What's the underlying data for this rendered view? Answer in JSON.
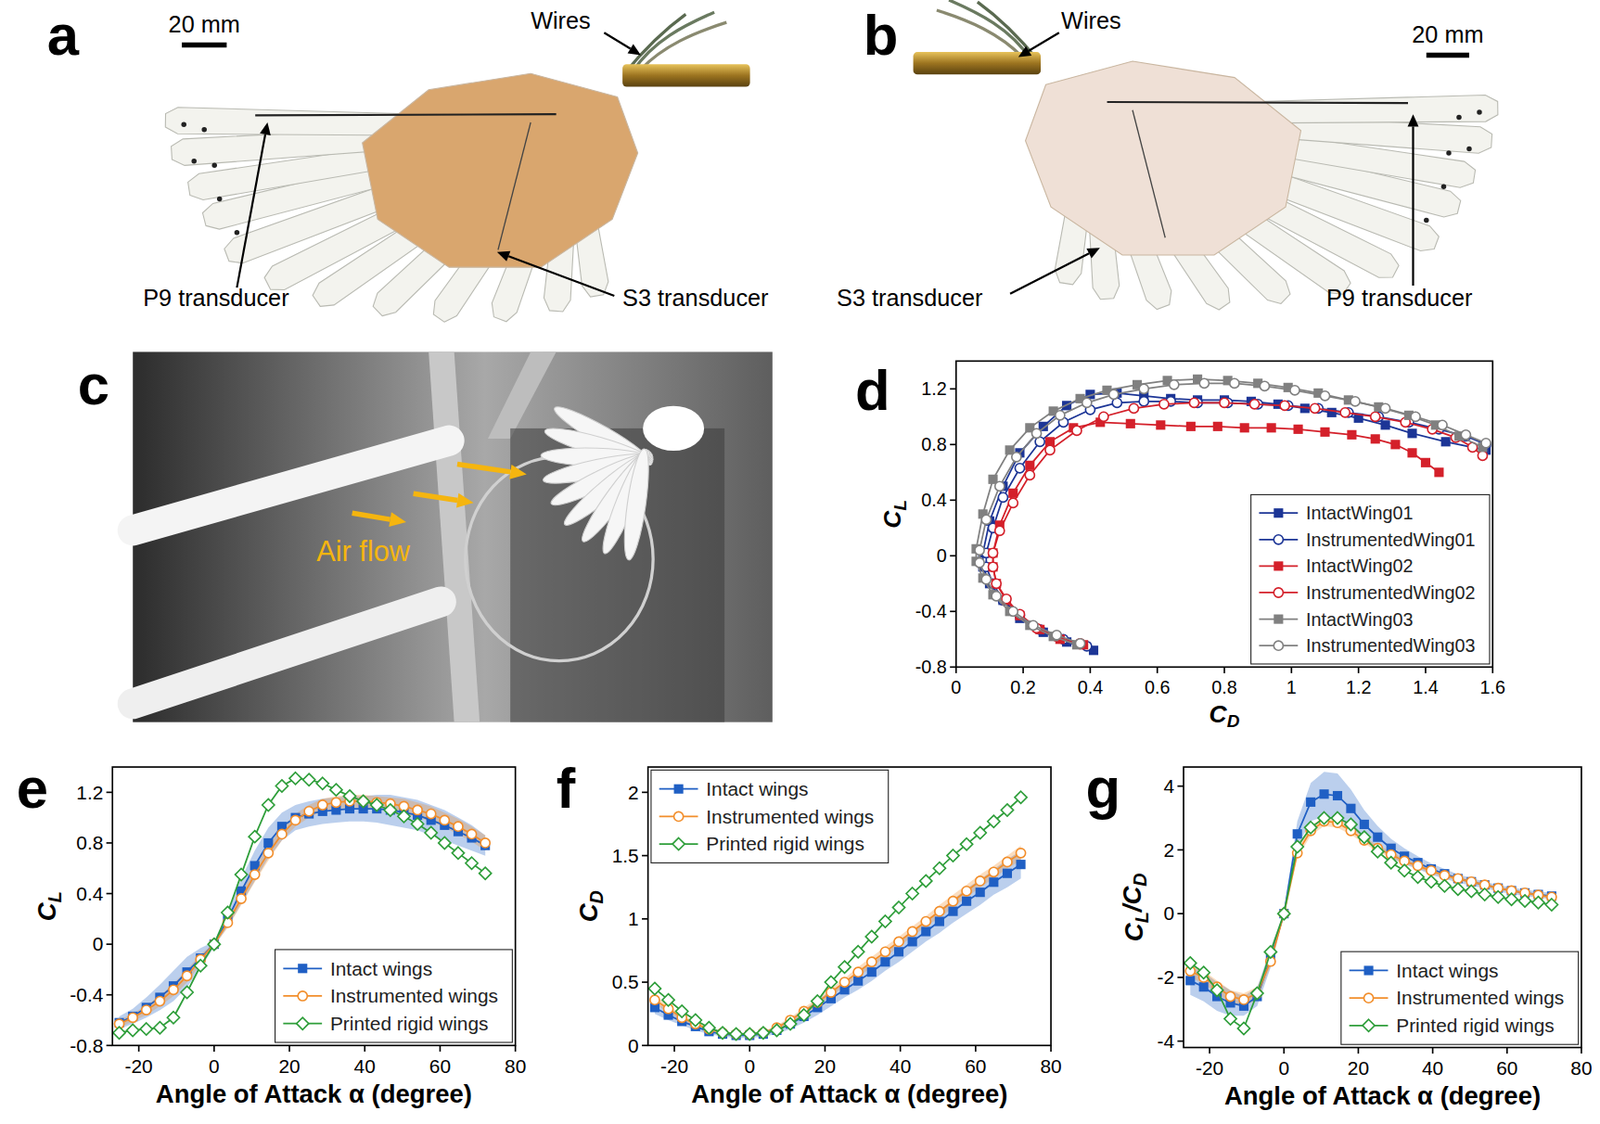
{
  "photos": [
    {
      "panel": "a",
      "scale_bar": "20 mm",
      "labels": [
        "Wires",
        "P9 transducer",
        "S3 transducer"
      ]
    },
    {
      "panel": "b",
      "scale_bar": "20 mm",
      "labels": [
        "Wires",
        "S3 transducer",
        "P9 transducer"
      ]
    },
    {
      "panel": "c",
      "labels": [
        "Air flow"
      ]
    }
  ],
  "chart_data": [
    {
      "panel": "d",
      "type": "line",
      "x_label": "CD",
      "y_label": "CL",
      "xlim": [
        0,
        1.6
      ],
      "ylim": [
        -0.8,
        1.4
      ],
      "xticks": [
        0,
        0.2,
        0.4,
        0.6,
        0.8,
        1,
        1.2,
        1.4,
        1.6
      ],
      "yticks": [
        -0.8,
        -0.4,
        0,
        0.4,
        0.8,
        1.2
      ],
      "legend": "lower right",
      "series": [
        {
          "name": "IntactWing01",
          "color": "#1c3596",
          "marker": "square",
          "x": [
            0.41,
            0.33,
            0.26,
            0.19,
            0.14,
            0.1,
            0.08,
            0.08,
            0.1,
            0.14,
            0.19,
            0.26,
            0.33,
            0.4,
            0.48,
            0.56,
            0.64,
            0.72,
            0.8,
            0.88,
            0.96,
            1.04,
            1.12,
            1.2,
            1.28,
            1.36,
            1.46,
            1.58
          ],
          "values": [
            -0.68,
            -0.62,
            -0.55,
            -0.45,
            -0.32,
            -0.2,
            -0.08,
            0.02,
            0.25,
            0.5,
            0.74,
            0.93,
            1.08,
            1.16,
            1.17,
            1.15,
            1.13,
            1.12,
            1.12,
            1.11,
            1.09,
            1.06,
            1.03,
            0.99,
            0.94,
            0.88,
            0.82,
            0.76
          ]
        },
        {
          "name": "InstrumentedWing01",
          "color": "#1c3596",
          "marker": "open-circle",
          "x": [
            0.39,
            0.32,
            0.25,
            0.19,
            0.14,
            0.11,
            0.09,
            0.09,
            0.11,
            0.14,
            0.19,
            0.25,
            0.32,
            0.4,
            0.48,
            0.56,
            0.64,
            0.72,
            0.81,
            0.9,
            0.99,
            1.08,
            1.17,
            1.26,
            1.35,
            1.44,
            1.52,
            1.58
          ],
          "values": [
            -0.65,
            -0.6,
            -0.53,
            -0.43,
            -0.32,
            -0.2,
            -0.08,
            0.02,
            0.2,
            0.42,
            0.63,
            0.82,
            0.96,
            1.05,
            1.1,
            1.11,
            1.11,
            1.1,
            1.1,
            1.09,
            1.08,
            1.06,
            1.03,
            1.0,
            0.96,
            0.91,
            0.86,
            0.8
          ]
        },
        {
          "name": "IntactWing02",
          "color": "#d4202a",
          "marker": "square",
          "x": [
            0.38,
            0.31,
            0.25,
            0.19,
            0.15,
            0.12,
            0.11,
            0.11,
            0.13,
            0.17,
            0.22,
            0.28,
            0.35,
            0.43,
            0.52,
            0.61,
            0.7,
            0.78,
            0.86,
            0.94,
            1.02,
            1.1,
            1.18,
            1.25,
            1.31,
            1.36,
            1.4,
            1.44
          ],
          "values": [
            -0.64,
            -0.6,
            -0.53,
            -0.43,
            -0.32,
            -0.2,
            -0.08,
            0.02,
            0.22,
            0.45,
            0.65,
            0.82,
            0.92,
            0.96,
            0.95,
            0.94,
            0.93,
            0.93,
            0.92,
            0.92,
            0.91,
            0.89,
            0.87,
            0.84,
            0.8,
            0.74,
            0.67,
            0.6
          ]
        },
        {
          "name": "InstrumentedWing02",
          "color": "#d4202a",
          "marker": "open-circle",
          "x": [
            0.37,
            0.3,
            0.24,
            0.19,
            0.15,
            0.12,
            0.11,
            0.11,
            0.13,
            0.17,
            0.22,
            0.28,
            0.36,
            0.44,
            0.53,
            0.62,
            0.71,
            0.8,
            0.89,
            0.98,
            1.07,
            1.16,
            1.25,
            1.34,
            1.42,
            1.49,
            1.54,
            1.57
          ],
          "values": [
            -0.63,
            -0.58,
            -0.52,
            -0.42,
            -0.31,
            -0.2,
            -0.08,
            0.02,
            0.18,
            0.38,
            0.58,
            0.76,
            0.9,
            1.0,
            1.06,
            1.09,
            1.1,
            1.1,
            1.09,
            1.08,
            1.06,
            1.03,
            1.0,
            0.96,
            0.91,
            0.85,
            0.78,
            0.72
          ]
        },
        {
          "name": "IntactWing03",
          "color": "#808080",
          "marker": "square",
          "x": [
            0.36,
            0.29,
            0.22,
            0.16,
            0.11,
            0.08,
            0.06,
            0.06,
            0.08,
            0.11,
            0.16,
            0.22,
            0.29,
            0.37,
            0.45,
            0.54,
            0.63,
            0.72,
            0.81,
            0.9,
            0.99,
            1.08,
            1.17,
            1.26,
            1.35,
            1.43,
            1.5,
            1.57
          ],
          "values": [
            -0.64,
            -0.58,
            -0.5,
            -0.4,
            -0.28,
            -0.16,
            -0.04,
            0.05,
            0.3,
            0.55,
            0.76,
            0.92,
            1.04,
            1.13,
            1.19,
            1.23,
            1.26,
            1.27,
            1.26,
            1.24,
            1.21,
            1.17,
            1.12,
            1.07,
            1.01,
            0.94,
            0.86,
            0.78
          ]
        },
        {
          "name": "InstrumentedWing03",
          "color": "#808080",
          "marker": "open-circle",
          "x": [
            0.37,
            0.3,
            0.23,
            0.17,
            0.12,
            0.09,
            0.07,
            0.07,
            0.09,
            0.13,
            0.18,
            0.24,
            0.31,
            0.39,
            0.47,
            0.56,
            0.65,
            0.74,
            0.83,
            0.92,
            1.01,
            1.1,
            1.19,
            1.28,
            1.37,
            1.45,
            1.52,
            1.58
          ],
          "values": [
            -0.63,
            -0.57,
            -0.5,
            -0.4,
            -0.29,
            -0.17,
            -0.05,
            0.04,
            0.26,
            0.5,
            0.71,
            0.88,
            1.01,
            1.1,
            1.16,
            1.2,
            1.23,
            1.24,
            1.24,
            1.22,
            1.19,
            1.15,
            1.11,
            1.06,
            1.0,
            0.94,
            0.87,
            0.81
          ]
        }
      ]
    },
    {
      "panel": "e",
      "type": "line",
      "x_label": "Angle of Attack α (degree)",
      "y_label": "CL",
      "x": [
        -25.2,
        -21.6,
        -18,
        -14.4,
        -10.8,
        -7.2,
        -3.6,
        0,
        3.6,
        7.2,
        10.8,
        14.4,
        18,
        21.6,
        25.2,
        28.8,
        32.4,
        36,
        39.6,
        43.2,
        46.8,
        50.4,
        54,
        57.6,
        61.2,
        64.8,
        68.4,
        72
      ],
      "xlim": [
        -27,
        80
      ],
      "xticks": [
        -20,
        0,
        20,
        40,
        60,
        80
      ],
      "ylim": [
        -0.8,
        1.4
      ],
      "yticks": [
        -0.8,
        -0.4,
        0,
        0.4,
        0.8,
        1.2
      ],
      "legend": "lower right",
      "series": [
        {
          "name": "Intact wings",
          "color": "#1f5fc4",
          "marker": "square",
          "values": [
            -0.62,
            -0.57,
            -0.5,
            -0.42,
            -0.33,
            -0.22,
            -0.11,
            0,
            0.2,
            0.42,
            0.62,
            0.8,
            0.93,
            1.0,
            1.03,
            1.05,
            1.06,
            1.07,
            1.07,
            1.07,
            1.06,
            1.04,
            1.02,
            0.98,
            0.94,
            0.89,
            0.84,
            0.78
          ],
          "error": [
            0.05,
            0.06,
            0.08,
            0.1,
            0.12,
            0.12,
            0.08,
            0.02,
            0.06,
            0.1,
            0.12,
            0.12,
            0.11,
            0.1,
            0.1,
            0.1,
            0.1,
            0.1,
            0.1,
            0.11,
            0.12,
            0.12,
            0.12,
            0.12,
            0.12,
            0.11,
            0.1,
            0.08
          ]
        },
        {
          "name": "Instrumented wings",
          "color": "#f28e2b",
          "marker": "open-circle",
          "values": [
            -0.63,
            -0.58,
            -0.52,
            -0.45,
            -0.36,
            -0.25,
            -0.12,
            0,
            0.17,
            0.36,
            0.55,
            0.72,
            0.87,
            0.98,
            1.05,
            1.1,
            1.12,
            1.13,
            1.13,
            1.12,
            1.11,
            1.09,
            1.06,
            1.03,
            0.98,
            0.93,
            0.87,
            0.8
          ],
          "error": [
            0.03,
            0.03,
            0.04,
            0.04,
            0.05,
            0.05,
            0.04,
            0.01,
            0.04,
            0.05,
            0.06,
            0.06,
            0.05,
            0.05,
            0.05,
            0.05,
            0.05,
            0.05,
            0.05,
            0.05,
            0.05,
            0.06,
            0.06,
            0.06,
            0.06,
            0.06,
            0.06,
            0.06
          ]
        },
        {
          "name": "Printed rigid wings",
          "color": "#2e9e3a",
          "marker": "open-diamond",
          "values": [
            -0.7,
            -0.68,
            -0.67,
            -0.66,
            -0.58,
            -0.38,
            -0.17,
            0,
            0.25,
            0.55,
            0.85,
            1.1,
            1.25,
            1.31,
            1.3,
            1.27,
            1.22,
            1.17,
            1.13,
            1.1,
            1.06,
            1.01,
            0.95,
            0.88,
            0.8,
            0.72,
            0.64,
            0.56
          ]
        }
      ]
    },
    {
      "panel": "f",
      "type": "line",
      "x_label": "Angle of Attack α (degree)",
      "y_label": "CD",
      "x": [
        -25.2,
        -21.6,
        -18,
        -14.4,
        -10.8,
        -7.2,
        -3.6,
        0,
        3.6,
        7.2,
        10.8,
        14.4,
        18,
        21.6,
        25.2,
        28.8,
        32.4,
        36,
        39.6,
        43.2,
        46.8,
        50.4,
        54,
        57.6,
        61.2,
        64.8,
        68.4,
        72
      ],
      "xlim": [
        -27,
        80
      ],
      "xticks": [
        -20,
        0,
        20,
        40,
        60,
        80
      ],
      "ylim": [
        0,
        2.2
      ],
      "yticks": [
        0,
        0.5,
        1,
        1.5,
        2
      ],
      "legend": "upper left",
      "series": [
        {
          "name": "Intact wings",
          "color": "#1f5fc4",
          "marker": "square",
          "values": [
            0.3,
            0.24,
            0.19,
            0.15,
            0.11,
            0.09,
            0.08,
            0.08,
            0.09,
            0.12,
            0.17,
            0.23,
            0.3,
            0.37,
            0.44,
            0.51,
            0.58,
            0.66,
            0.74,
            0.82,
            0.9,
            0.98,
            1.06,
            1.14,
            1.21,
            1.29,
            1.36,
            1.43
          ],
          "error": [
            0.05,
            0.04,
            0.03,
            0.03,
            0.02,
            0.02,
            0.02,
            0.02,
            0.02,
            0.03,
            0.04,
            0.05,
            0.06,
            0.06,
            0.06,
            0.07,
            0.07,
            0.07,
            0.08,
            0.08,
            0.08,
            0.09,
            0.09,
            0.1,
            0.1,
            0.1,
            0.11,
            0.11
          ]
        },
        {
          "name": "Instrumented wings",
          "color": "#f28e2b",
          "marker": "open-circle",
          "values": [
            0.36,
            0.29,
            0.22,
            0.17,
            0.13,
            0.1,
            0.09,
            0.09,
            0.1,
            0.14,
            0.2,
            0.27,
            0.34,
            0.42,
            0.5,
            0.58,
            0.66,
            0.74,
            0.82,
            0.9,
            0.98,
            1.06,
            1.14,
            1.22,
            1.3,
            1.37,
            1.45,
            1.52
          ],
          "error": [
            0.03,
            0.03,
            0.02,
            0.02,
            0.01,
            0.01,
            0.01,
            0.01,
            0.01,
            0.02,
            0.02,
            0.03,
            0.03,
            0.03,
            0.03,
            0.04,
            0.04,
            0.04,
            0.04,
            0.04,
            0.04,
            0.05,
            0.05,
            0.05,
            0.05,
            0.05,
            0.05,
            0.06
          ]
        },
        {
          "name": "Printed rigid wings",
          "color": "#2e9e3a",
          "marker": "open-diamond",
          "values": [
            0.45,
            0.36,
            0.27,
            0.2,
            0.14,
            0.1,
            0.09,
            0.09,
            0.1,
            0.12,
            0.17,
            0.24,
            0.35,
            0.5,
            0.62,
            0.74,
            0.86,
            0.98,
            1.09,
            1.2,
            1.3,
            1.4,
            1.5,
            1.59,
            1.68,
            1.77,
            1.86,
            1.96
          ]
        }
      ]
    },
    {
      "panel": "g",
      "type": "line",
      "x_label": "Angle of Attack α (degree)",
      "y_label": "CL/CD",
      "x": [
        -25.2,
        -21.6,
        -18,
        -14.4,
        -10.8,
        -7.2,
        -3.6,
        0,
        3.6,
        7.2,
        10.8,
        14.4,
        18,
        21.6,
        25.2,
        28.8,
        32.4,
        36,
        39.6,
        43.2,
        46.8,
        50.4,
        54,
        57.6,
        61.2,
        64.8,
        68.4,
        72
      ],
      "xlim": [
        -27,
        80
      ],
      "xticks": [
        -20,
        0,
        20,
        40,
        60,
        80
      ],
      "ylim": [
        -4.2,
        4.6
      ],
      "yticks": [
        -4,
        -2,
        0,
        2,
        4
      ],
      "legend": "lower right",
      "series": [
        {
          "name": "Intact wings",
          "color": "#1f5fc4",
          "marker": "square",
          "values": [
            -2.1,
            -2.3,
            -2.6,
            -2.8,
            -2.9,
            -2.6,
            -1.4,
            0,
            2.5,
            3.5,
            3.75,
            3.7,
            3.3,
            2.8,
            2.4,
            2.05,
            1.8,
            1.6,
            1.4,
            1.25,
            1.1,
            1.0,
            0.9,
            0.8,
            0.72,
            0.65,
            0.6,
            0.55
          ],
          "error": [
            0.45,
            0.45,
            0.45,
            0.4,
            0.3,
            0.3,
            0.3,
            0.05,
            0.4,
            0.6,
            0.7,
            0.7,
            0.6,
            0.45,
            0.35,
            0.3,
            0.25,
            0.2,
            0.18,
            0.15,
            0.13,
            0.12,
            0.1,
            0.1,
            0.1,
            0.1,
            0.1,
            0.1
          ]
        },
        {
          "name": "Instrumented wings",
          "color": "#f28e2b",
          "marker": "open-circle",
          "values": [
            -1.8,
            -2.0,
            -2.3,
            -2.6,
            -2.7,
            -2.5,
            -1.5,
            0,
            1.9,
            2.6,
            2.9,
            2.85,
            2.6,
            2.3,
            2.05,
            1.85,
            1.65,
            1.5,
            1.35,
            1.2,
            1.1,
            1.0,
            0.9,
            0.8,
            0.72,
            0.65,
            0.58,
            0.52
          ],
          "error": [
            0.2,
            0.2,
            0.2,
            0.2,
            0.2,
            0.2,
            0.15,
            0.05,
            0.15,
            0.15,
            0.15,
            0.15,
            0.12,
            0.1,
            0.1,
            0.1,
            0.08,
            0.08,
            0.07,
            0.06,
            0.06,
            0.05,
            0.05,
            0.05,
            0.05,
            0.05,
            0.05,
            0.05
          ]
        },
        {
          "name": "Printed rigid wings",
          "color": "#2e9e3a",
          "marker": "open-diamond",
          "values": [
            -1.55,
            -1.85,
            -2.4,
            -3.3,
            -3.6,
            -2.5,
            -1.2,
            0,
            2.1,
            2.7,
            3.0,
            3.0,
            2.8,
            2.4,
            1.95,
            1.6,
            1.35,
            1.15,
            1.0,
            0.87,
            0.77,
            0.7,
            0.6,
            0.52,
            0.45,
            0.4,
            0.35,
            0.28
          ]
        }
      ]
    }
  ]
}
